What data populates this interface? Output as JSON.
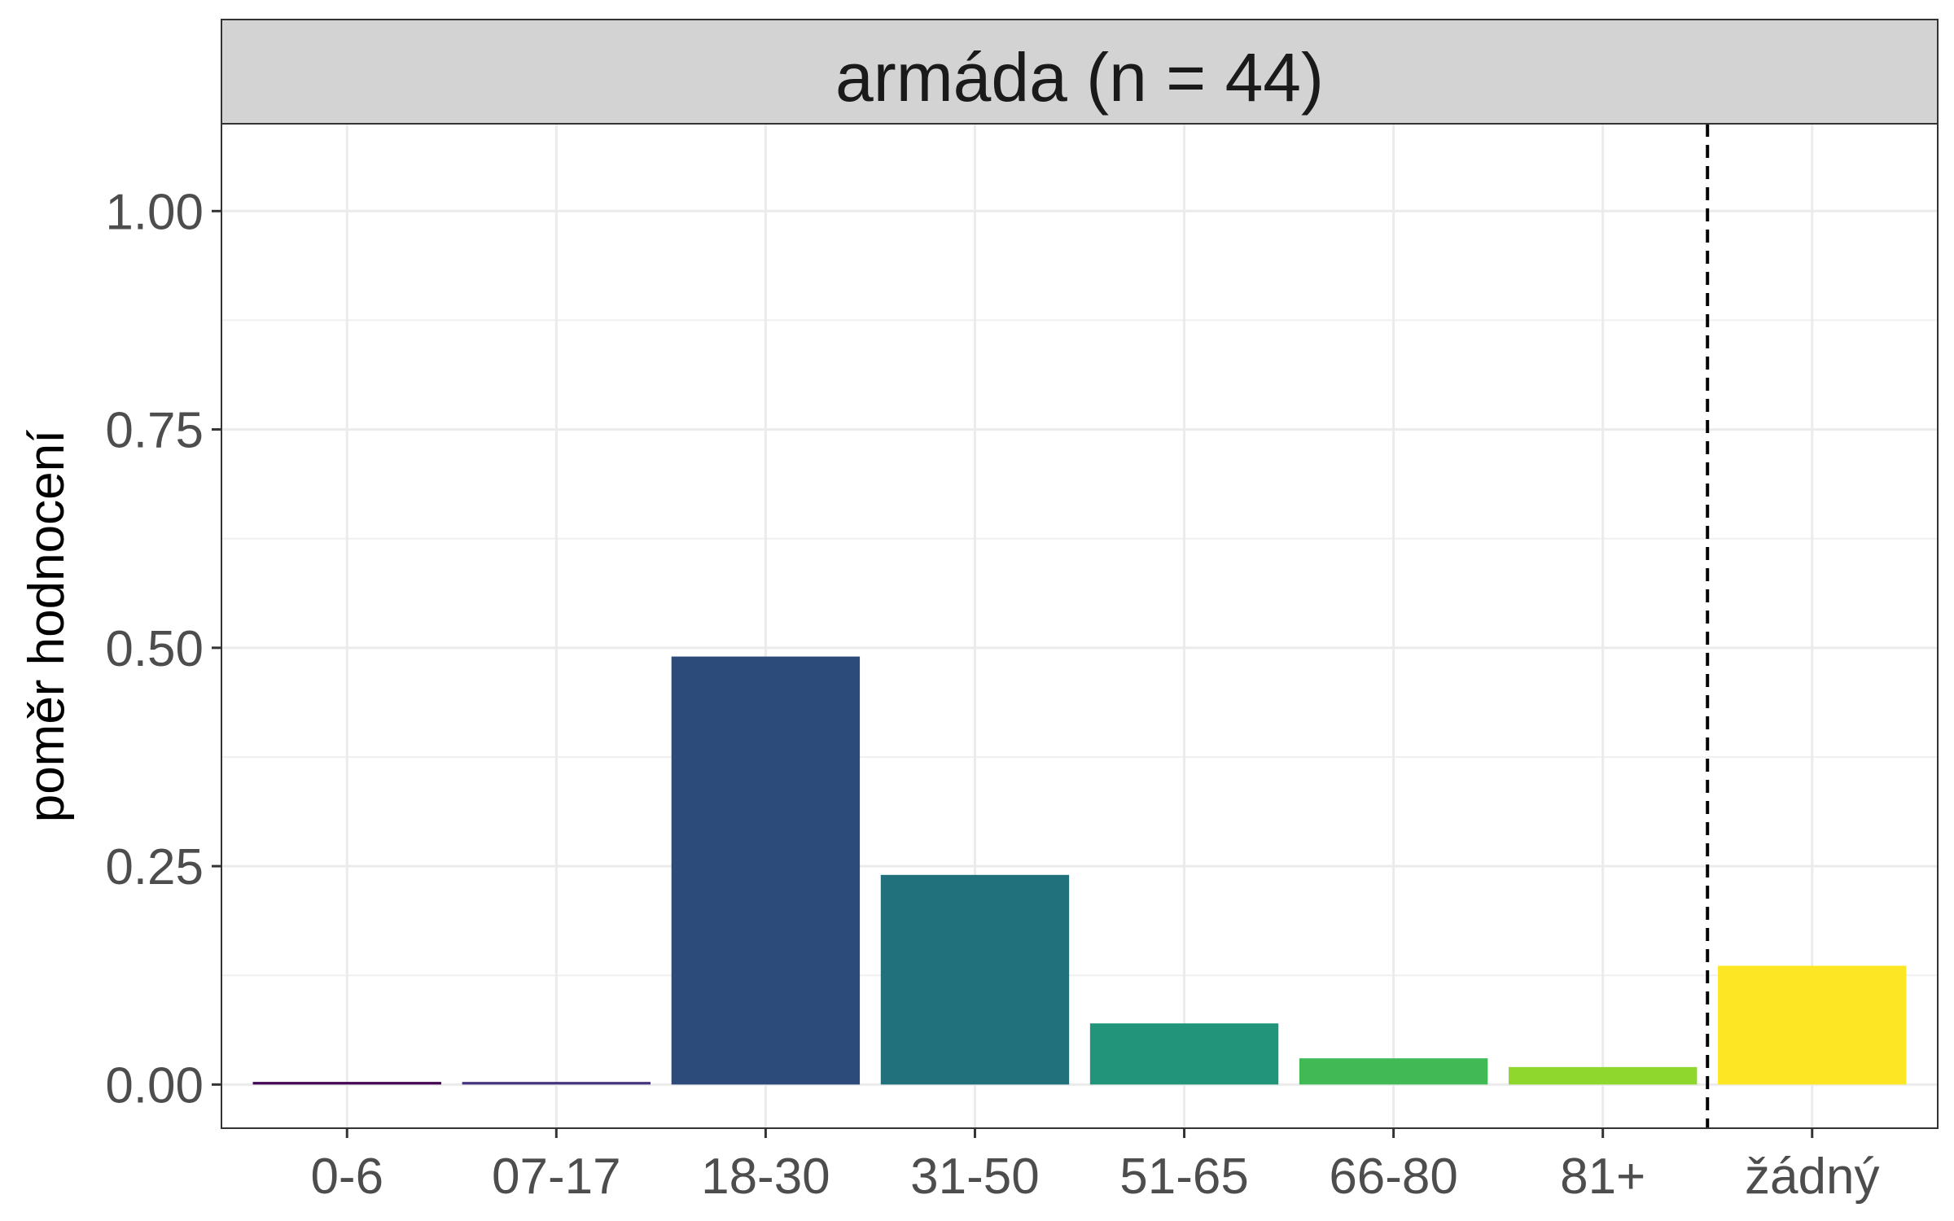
{
  "chart_data": {
    "type": "bar",
    "facet_title": "armáda (n = 44)",
    "ylabel": "poměr hodnocení",
    "xlabel": "",
    "categories": [
      "0-6",
      "07-17",
      "18-30",
      "31-50",
      "51-65",
      "66-80",
      "81+",
      "žádný"
    ],
    "values": [
      0.003,
      0.003,
      0.49,
      0.24,
      0.07,
      0.03,
      0.02,
      0.136
    ],
    "colors": [
      "#440154",
      "#46337E",
      "#2C4A7A",
      "#21717C",
      "#22947A",
      "#41B955",
      "#8FD72C",
      "#FDE725"
    ],
    "ylim": [
      -0.05,
      1.1
    ],
    "yticks": [
      0.0,
      0.25,
      0.5,
      0.75,
      1.0
    ],
    "ytick_labels": [
      "0.00",
      "0.25",
      "0.50",
      "0.75",
      "1.00"
    ],
    "grid": true,
    "reference_line": {
      "style": "dashed",
      "between_categories": [
        "81+",
        "žádný"
      ]
    },
    "legend": "none"
  }
}
